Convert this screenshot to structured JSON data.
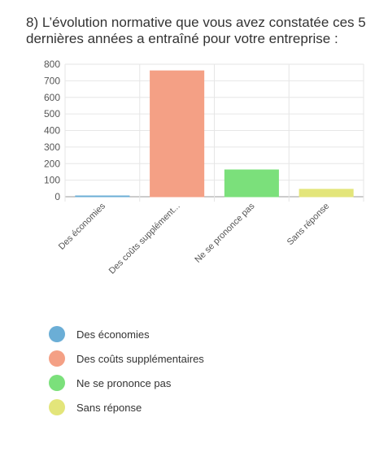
{
  "chart_data": {
    "type": "bar",
    "title": "8) L’évolution normative que vous avez constatée ces 5 dernières années a entraîné pour votre entreprise :",
    "categories": [
      "Des économies",
      "Des coûts supplémentaires",
      "Ne se prononce pas",
      "Sans réponse"
    ],
    "category_tick_labels": [
      "Des économies",
      "Des coûts supplément...",
      "Ne se prononce pas",
      "Sans réponse"
    ],
    "values": [
      3,
      760,
      162,
      45
    ],
    "colors": [
      "#6baed6",
      "#f4a085",
      "#7be07b",
      "#e3e57a"
    ],
    "ylim": [
      0,
      800
    ],
    "yticks": [
      0,
      100,
      200,
      300,
      400,
      500,
      600,
      700,
      800
    ],
    "grid": true,
    "legend_position": "bottom"
  }
}
